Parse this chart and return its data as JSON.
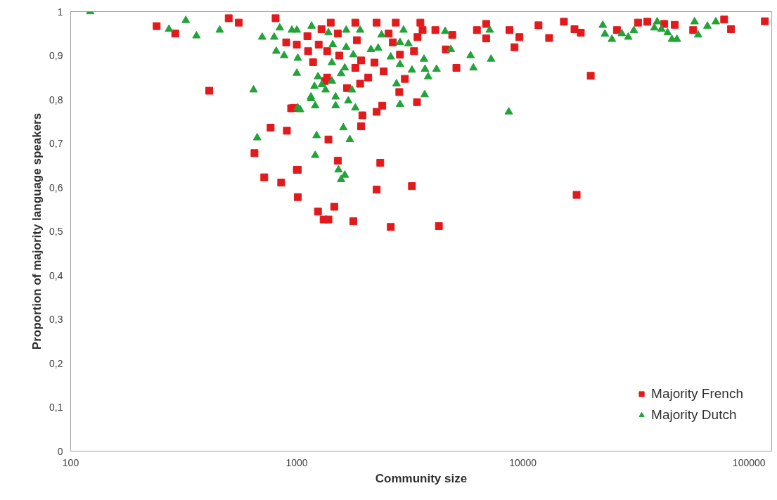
{
  "chart_data": {
    "type": "scatter",
    "xlabel": "Community size",
    "ylabel": "Proportion of majority language speakers",
    "log": "x",
    "grid": false,
    "legend": "bottom right",
    "xlim": [
      100,
      126000
    ],
    "xticks": [
      100,
      1000,
      10000,
      100000
    ],
    "ylim": [
      0,
      1
    ],
    "yticks": [
      0,
      {
        "value": 0.1,
        "label": "0,1"
      },
      {
        "value": 0.2,
        "label": "0,2"
      },
      {
        "value": 0.3,
        "label": "0,3"
      },
      {
        "value": 0.4,
        "label": "0,4"
      },
      {
        "value": 0.5,
        "label": "0,5"
      },
      {
        "value": 0.6,
        "label": "0,6"
      },
      {
        "value": 0.7,
        "label": "0,7"
      },
      {
        "value": 0.8,
        "label": "0,8"
      },
      {
        "value": 0.9,
        "label": "0,9"
      },
      1
    ],
    "series": [
      {
        "name": "Majority French",
        "color": "#e31a1c",
        "marker": "square",
        "x": [
          240,
          290,
          500,
          554,
          806,
          410,
          650,
          718,
          766,
          853,
          904,
          1010,
          1010,
          944,
          1413,
          1815,
          2255,
          2740,
          3520,
          898,
          1000,
          1114,
          1286,
          1518,
          1122,
          1180,
          1250,
          1362,
          1540,
          1844,
          1925,
          1815,
          2206,
          2423,
          2070,
          1906,
          1362,
          1330,
          1667,
          2548,
          2660,
          2860,
          3300,
          3420,
          3600,
          4100,
          4870,
          4560,
          3006,
          2840,
          2388,
          2255,
          1950,
          1925,
          3400,
          5080,
          6260,
          6880,
          6880,
          970,
          1380,
          1518,
          2340,
          1000,
          1465,
          1241,
          1314,
          1380,
          1778,
          2255,
          3230,
          2604,
          4250,
          8720,
          9650,
          9180,
          11720,
          13060,
          15180,
          16910,
          18030,
          19950,
          17280,
          26060,
          32290,
          35480,
          42170,
          46950,
          56620,
          77620,
          83240,
          117500
        ],
        "values": [
          0.967,
          0.95,
          0.985,
          0.975,
          0.985,
          0.82,
          0.678,
          0.623,
          0.736,
          0.611,
          0.729,
          0.64,
          0.578,
          0.78,
          0.975,
          0.975,
          0.975,
          0.975,
          0.975,
          0.93,
          0.925,
          0.944,
          0.96,
          0.95,
          0.91,
          0.885,
          0.925,
          0.91,
          0.9,
          0.935,
          0.889,
          0.872,
          0.884,
          0.864,
          0.85,
          0.836,
          0.85,
          0.842,
          0.826,
          0.95,
          0.93,
          0.902,
          0.91,
          0.942,
          0.958,
          0.958,
          0.947,
          0.914,
          0.847,
          0.817,
          0.786,
          0.772,
          0.764,
          0.739,
          0.794,
          0.872,
          0.958,
          0.972,
          0.939,
          0.781,
          0.709,
          0.661,
          0.656,
          0.64,
          0.556,
          0.545,
          0.527,
          0.527,
          0.523,
          0.595,
          0.603,
          0.51,
          0.512,
          0.958,
          0.942,
          0.919,
          0.969,
          0.94,
          0.977,
          0.96,
          0.952,
          0.854,
          0.583,
          0.958,
          0.975,
          0.977,
          0.972,
          0.97,
          0.958,
          0.982,
          0.96,
          0.978
        ]
      },
      {
        "name": "Majority Dutch",
        "color": "#22a33a",
        "marker": "triangle",
        "x": [
          122,
          323,
          272,
          360,
          456,
          703,
          794,
          841,
          951,
          811,
          879,
          1010,
          1000,
          644,
          1010,
          668,
          1155,
          1000,
          1163,
          1380,
          1654,
          1906,
          2371,
          2965,
          2860,
          3116,
          4530,
          4800,
          5870,
          6040,
          1443,
          1654,
          2128,
          2290,
          1778,
          2604,
          3652,
          2860,
          3230,
          3690,
          3811,
          4150,
          1430,
          1630,
          1241,
          1197,
          1290,
          1340,
          1430,
          1570,
          1753,
          2760,
          3677,
          2860,
          1155,
          1206,
          1485,
          1485,
          1690,
          1815,
          1034,
          1607,
          1716,
          1223,
          1206,
          1529,
          1630,
          1570,
          7130,
          7230,
          8660,
          22550,
          23050,
          24750,
          27390,
          29240,
          30950,
          38120,
          39240,
          40990,
          43650,
          45600,
          47980,
          57430,
          59570,
          65460,
          71290
        ],
        "values": [
          1.0,
          0.98,
          0.96,
          0.945,
          0.958,
          0.942,
          0.942,
          0.963,
          0.958,
          0.91,
          0.9,
          0.894,
          0.86,
          0.822,
          0.781,
          0.713,
          0.806,
          0.958,
          0.967,
          0.952,
          0.958,
          0.958,
          0.947,
          0.958,
          0.93,
          0.927,
          0.955,
          0.914,
          0.9,
          0.872,
          0.925,
          0.919,
          0.914,
          0.917,
          0.902,
          0.897,
          0.892,
          0.88,
          0.867,
          0.869,
          0.852,
          0.869,
          0.884,
          0.872,
          0.852,
          0.83,
          0.834,
          0.822,
          0.842,
          0.859,
          0.822,
          0.836,
          0.811,
          0.789,
          0.802,
          0.786,
          0.806,
          0.786,
          0.797,
          0.781,
          0.777,
          0.736,
          0.709,
          0.718,
          0.673,
          0.64,
          0.628,
          0.618,
          0.958,
          0.892,
          0.772,
          0.969,
          0.949,
          0.937,
          0.95,
          0.942,
          0.957,
          0.963,
          0.977,
          0.96,
          0.952,
          0.937,
          0.937,
          0.977,
          0.947,
          0.967,
          0.977
        ]
      }
    ]
  }
}
